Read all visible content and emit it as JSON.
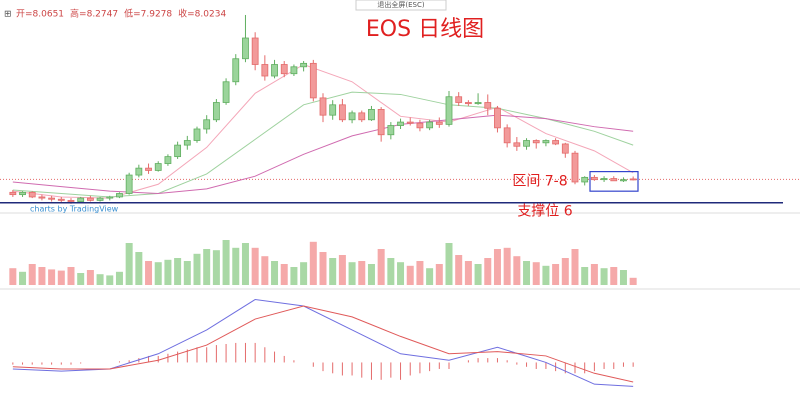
{
  "chart_data": {
    "type": "candlestick",
    "title": "EOS 日线图",
    "header": [
      "开=8.0651",
      "高=8.2747",
      "低=7.9278",
      "收=8.0234"
    ],
    "exit_button": "退出全屏(ESC)",
    "watermark": "charts by TradingView",
    "ylim": [
      5.8,
      23.6
    ],
    "up_color": "#5fae5f",
    "down_color": "#e46a6a",
    "open": [
      6.9,
      6.7,
      6.9,
      6.5,
      6.4,
      6.3,
      6.2,
      6.1,
      6.4,
      6.2,
      6.4,
      6.5,
      6.8,
      8.4,
      9.0,
      8.8,
      9.4,
      10.0,
      11.0,
      11.4,
      12.4,
      13.2,
      14.7,
      16.5,
      18.5,
      20.3,
      18.0,
      17.0,
      18.0,
      17.2,
      17.8,
      18.1,
      15.1,
      13.6,
      14.5,
      13.2,
      13.8,
      13.2,
      14.1,
      11.9,
      12.7,
      13.0,
      12.9,
      12.5,
      13.0,
      12.8,
      15.2,
      14.7,
      14.6,
      14.7,
      14.2,
      12.5,
      11.2,
      10.9,
      11.4,
      11.2,
      11.4,
      11.1,
      10.3,
      7.8,
      8.2,
      8.0,
      8.1,
      7.9,
      8.0651
    ],
    "high": [
      7.1,
      7.0,
      7.0,
      6.7,
      6.6,
      6.5,
      6.4,
      6.5,
      6.6,
      6.5,
      6.6,
      6.9,
      8.6,
      9.3,
      9.4,
      9.6,
      10.2,
      11.3,
      11.8,
      12.6,
      13.6,
      15.0,
      16.8,
      18.9,
      22.3,
      20.8,
      18.8,
      18.4,
      18.3,
      18.0,
      18.3,
      18.4,
      15.5,
      14.9,
      15.0,
      14.0,
      14.0,
      14.4,
      14.3,
      13.0,
      13.3,
      13.4,
      13.2,
      13.2,
      13.4,
      15.7,
      15.6,
      14.9,
      15.5,
      15.4,
      14.4,
      12.8,
      11.7,
      11.6,
      11.5,
      11.5,
      11.6,
      11.2,
      10.5,
      8.3,
      8.4,
      8.3,
      8.3,
      8.2,
      8.2747
    ],
    "low": [
      6.5,
      6.5,
      6.4,
      6.2,
      6.1,
      6.0,
      5.9,
      6.0,
      6.1,
      6.1,
      6.2,
      6.4,
      6.7,
      8.2,
      8.5,
      8.7,
      9.2,
      9.8,
      10.6,
      11.2,
      12.0,
      13.0,
      14.5,
      16.2,
      18.2,
      17.5,
      16.6,
      16.8,
      16.9,
      17.0,
      17.4,
      14.8,
      13.0,
      13.2,
      13.0,
      12.9,
      13.0,
      13.1,
      11.3,
      11.5,
      12.4,
      12.7,
      12.2,
      12.3,
      12.5,
      12.6,
      14.4,
      14.4,
      14.5,
      13.6,
      12.1,
      10.8,
      10.5,
      10.6,
      10.7,
      10.9,
      11.0,
      9.9,
      7.6,
      7.5,
      7.9,
      7.8,
      7.9,
      7.8,
      7.9278
    ],
    "close": [
      6.7,
      6.9,
      6.5,
      6.4,
      6.3,
      6.2,
      6.1,
      6.4,
      6.2,
      6.4,
      6.5,
      6.8,
      8.4,
      9.0,
      8.8,
      9.4,
      10.0,
      11.0,
      11.4,
      12.4,
      13.2,
      14.7,
      16.5,
      18.5,
      20.3,
      18.0,
      17.0,
      18.0,
      17.2,
      17.8,
      18.1,
      15.1,
      13.6,
      14.5,
      13.2,
      13.8,
      13.2,
      14.1,
      11.9,
      12.7,
      13.0,
      12.9,
      12.5,
      13.0,
      12.8,
      15.2,
      14.7,
      14.6,
      14.7,
      14.2,
      12.5,
      11.2,
      10.9,
      11.4,
      11.2,
      11.4,
      11.1,
      10.3,
      7.8,
      8.2,
      8.0,
      8.1,
      7.9,
      8.0,
      8.0234
    ],
    "volume": [
      28,
      22,
      35,
      30,
      26,
      24,
      30,
      20,
      25,
      18,
      16,
      22,
      70,
      55,
      40,
      38,
      42,
      45,
      40,
      52,
      60,
      58,
      75,
      62,
      70,
      62,
      48,
      40,
      35,
      30,
      38,
      72,
      55,
      45,
      50,
      38,
      40,
      35,
      60,
      45,
      38,
      32,
      40,
      28,
      35,
      70,
      50,
      40,
      35,
      45,
      60,
      62,
      48,
      40,
      38,
      32,
      35,
      45,
      60,
      30,
      35,
      28,
      30,
      25,
      12
    ],
    "volume_ylim": [
      0,
      100
    ],
    "ma_x": [
      0,
      5,
      10,
      15,
      20,
      25,
      30,
      35,
      40,
      45,
      50,
      55,
      60,
      64
    ],
    "ma": [
      {
        "color": "#f4a6b8",
        "values": [
          7.0,
          6.5,
          6.4,
          7.6,
          10.8,
          15.5,
          18.0,
          16.5,
          13.5,
          13.0,
          14.3,
          12.0,
          10.5,
          8.6
        ]
      },
      {
        "color": "#9fd29f",
        "values": [
          7.1,
          6.8,
          6.5,
          6.8,
          8.5,
          11.5,
          14.5,
          15.6,
          15.4,
          14.5,
          14.2,
          13.3,
          12.2,
          11.0
        ]
      },
      {
        "color": "#d06bb0",
        "values": [
          7.8,
          7.4,
          7.0,
          6.8,
          7.2,
          8.3,
          10.2,
          11.8,
          12.8,
          13.2,
          13.6,
          13.3,
          12.6,
          12.2
        ]
      }
    ],
    "support": {
      "label": "支撑位 6",
      "value": 6,
      "color": "#1f2a7a"
    },
    "range_box": {
      "label": "区间 7-8",
      "ylim": [
        7.0,
        8.7
      ],
      "color": "#3344cc"
    },
    "last_line_color": "#e46a6a",
    "macd_ylim": [
      -1.5,
      3.2
    ],
    "dif": {
      "color": "#6f6fe0",
      "values": [
        -0.3,
        -0.4,
        -0.3,
        0.4,
        1.5,
        2.9,
        2.6,
        1.5,
        0.4,
        0.1,
        0.7,
        0.0,
        -1.0,
        -1.1
      ]
    },
    "dea": {
      "color": "#e05a5a",
      "values": [
        -0.2,
        -0.3,
        -0.3,
        0.1,
        0.8,
        2.0,
        2.6,
        2.1,
        1.2,
        0.4,
        0.5,
        0.3,
        -0.5,
        -0.9
      ]
    },
    "macd_hist": [
      -0.1,
      -0.1,
      -0.1,
      -0.1,
      -0.1,
      -0.1,
      -0.1,
      -0.05,
      0,
      0,
      0,
      0.05,
      0.1,
      0.2,
      0.3,
      0.3,
      0.4,
      0.5,
      0.6,
      0.7,
      0.7,
      0.8,
      0.85,
      0.9,
      0.9,
      0.9,
      0.7,
      0.5,
      0.3,
      0.1,
      0,
      -0.2,
      -0.4,
      -0.5,
      -0.6,
      -0.6,
      -0.7,
      -0.8,
      -0.8,
      -0.7,
      -0.8,
      -0.6,
      -0.5,
      -0.4,
      -0.3,
      -0.3,
      0,
      0.1,
      0.2,
      0.2,
      0.2,
      0.1,
      -0.1,
      -0.2,
      -0.3,
      -0.3,
      -0.4,
      -0.5,
      -0.5,
      -0.5,
      -0.4,
      -0.3,
      -0.3,
      -0.2,
      -0.2
    ]
  }
}
